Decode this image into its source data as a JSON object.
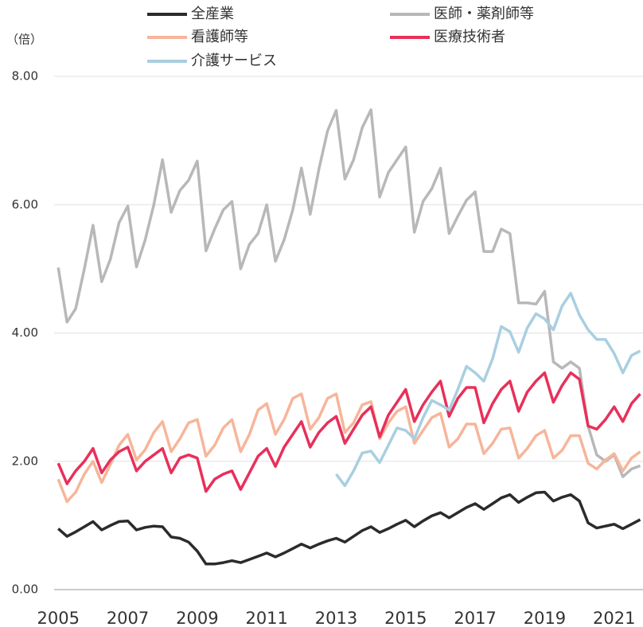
{
  "chart_data": {
    "type": "line",
    "y_unit_label": "（倍）",
    "x": [
      2005,
      2005.25,
      2005.5,
      2005.75,
      2006,
      2006.25,
      2006.5,
      2006.75,
      2007,
      2007.25,
      2007.5,
      2007.75,
      2008,
      2008.25,
      2008.5,
      2008.75,
      2009,
      2009.25,
      2009.5,
      2009.75,
      2010,
      2010.25,
      2010.5,
      2010.75,
      2011,
      2011.25,
      2011.5,
      2011.75,
      2012,
      2012.25,
      2012.5,
      2012.75,
      2013,
      2013.25,
      2013.5,
      2013.75,
      2014,
      2014.25,
      2014.5,
      2014.75,
      2015,
      2015.25,
      2015.5,
      2015.75,
      2016,
      2016.25,
      2016.5,
      2016.75,
      2017,
      2017.25,
      2017.5,
      2017.75,
      2018,
      2018.25,
      2018.5,
      2018.75,
      2019,
      2019.25,
      2019.5,
      2019.75,
      2020,
      2020.25,
      2020.5,
      2020.75,
      2021,
      2021.25,
      2021.5,
      2021.75
    ],
    "series": [
      {
        "name": "全産業",
        "color": "#2b2b2b",
        "values": [
          0.95,
          0.83,
          0.9,
          0.98,
          1.06,
          0.93,
          1.0,
          1.06,
          1.07,
          0.93,
          0.97,
          0.99,
          0.98,
          0.82,
          0.8,
          0.74,
          0.6,
          0.4,
          0.4,
          0.42,
          0.45,
          0.42,
          0.47,
          0.52,
          0.57,
          0.51,
          0.57,
          0.64,
          0.71,
          0.65,
          0.71,
          0.76,
          0.8,
          0.74,
          0.83,
          0.92,
          0.98,
          0.89,
          0.95,
          1.02,
          1.08,
          0.98,
          1.07,
          1.15,
          1.2,
          1.12,
          1.2,
          1.28,
          1.34,
          1.25,
          1.34,
          1.43,
          1.48,
          1.36,
          1.44,
          1.51,
          1.52,
          1.38,
          1.44,
          1.48,
          1.38,
          1.04,
          0.96,
          0.99,
          1.02,
          0.95,
          1.02,
          1.09
        ]
      },
      {
        "name": "医師・薬剤師等",
        "color": "#b8b8b8",
        "values": [
          5.02,
          4.17,
          4.38,
          5.0,
          5.68,
          4.8,
          5.15,
          5.72,
          5.98,
          5.03,
          5.45,
          6.0,
          6.7,
          5.88,
          6.22,
          6.38,
          6.68,
          5.28,
          5.62,
          5.92,
          6.05,
          5.0,
          5.38,
          5.55,
          6.0,
          5.12,
          5.45,
          5.92,
          6.57,
          5.85,
          6.55,
          7.15,
          7.47,
          6.4,
          6.7,
          7.2,
          7.48,
          6.12,
          6.5,
          6.7,
          6.9,
          5.57,
          6.05,
          6.25,
          6.57,
          5.55,
          5.82,
          6.07,
          6.2,
          5.27,
          5.27,
          5.62,
          5.55,
          4.47,
          4.47,
          4.45,
          4.65,
          3.55,
          3.45,
          3.55,
          3.45,
          2.55,
          2.1,
          2.0,
          2.1,
          1.76,
          1.88,
          1.93
        ]
      },
      {
        "name": "看護師等",
        "color": "#f7b59a",
        "values": [
          1.72,
          1.37,
          1.52,
          1.8,
          2.0,
          1.67,
          1.95,
          2.25,
          2.42,
          2.02,
          2.18,
          2.45,
          2.62,
          2.15,
          2.35,
          2.6,
          2.65,
          2.08,
          2.25,
          2.52,
          2.65,
          2.15,
          2.42,
          2.8,
          2.9,
          2.42,
          2.65,
          2.98,
          3.05,
          2.5,
          2.68,
          2.98,
          3.05,
          2.45,
          2.6,
          2.88,
          2.93,
          2.35,
          2.6,
          2.78,
          2.85,
          2.28,
          2.48,
          2.68,
          2.75,
          2.22,
          2.35,
          2.58,
          2.58,
          2.12,
          2.28,
          2.5,
          2.52,
          2.05,
          2.2,
          2.4,
          2.48,
          2.05,
          2.17,
          2.4,
          2.4,
          1.97,
          1.88,
          2.02,
          2.12,
          1.85,
          2.05,
          2.15
        ]
      },
      {
        "name": "医療技術者",
        "color": "#e8305a",
        "values": [
          1.97,
          1.65,
          1.85,
          2.0,
          2.2,
          1.82,
          2.02,
          2.15,
          2.22,
          1.85,
          2.0,
          2.1,
          2.2,
          1.82,
          2.05,
          2.1,
          2.05,
          1.53,
          1.72,
          1.8,
          1.85,
          1.56,
          1.82,
          2.08,
          2.2,
          1.92,
          2.22,
          2.42,
          2.62,
          2.22,
          2.45,
          2.6,
          2.7,
          2.28,
          2.5,
          2.72,
          2.85,
          2.38,
          2.72,
          2.92,
          3.12,
          2.62,
          2.88,
          3.08,
          3.25,
          2.7,
          2.98,
          3.15,
          3.15,
          2.6,
          2.9,
          3.12,
          3.25,
          2.78,
          3.08,
          3.25,
          3.38,
          2.92,
          3.18,
          3.38,
          3.28,
          2.55,
          2.5,
          2.65,
          2.85,
          2.62,
          2.9,
          3.05
        ]
      },
      {
        "name": "介護サービス",
        "color": "#a9cfe0",
        "values": [
          null,
          null,
          null,
          null,
          null,
          null,
          null,
          null,
          null,
          null,
          null,
          null,
          null,
          null,
          null,
          null,
          null,
          null,
          null,
          null,
          null,
          null,
          null,
          null,
          null,
          null,
          null,
          null,
          null,
          null,
          null,
          null,
          1.8,
          1.62,
          1.85,
          2.13,
          2.16,
          1.98,
          2.25,
          2.52,
          2.48,
          2.35,
          2.68,
          2.95,
          2.88,
          2.8,
          3.12,
          3.48,
          3.38,
          3.25,
          3.6,
          4.1,
          4.02,
          3.7,
          4.08,
          4.3,
          4.22,
          4.05,
          4.42,
          4.62,
          4.28,
          4.05,
          3.9,
          3.9,
          3.68,
          3.38,
          3.65,
          3.72
        ]
      }
    ],
    "xlim": [
      2004.88,
      2021.83
    ],
    "xticks": [
      2005,
      2007,
      2009,
      2011,
      2013,
      2015,
      2017,
      2019,
      2021
    ],
    "ylim": [
      0,
      8
    ],
    "yticks": [
      {
        "value": 0,
        "label": "0.00"
      },
      {
        "value": 2,
        "label": "2.00"
      },
      {
        "value": 4,
        "label": "4.00"
      },
      {
        "value": 6,
        "label": "6.00"
      },
      {
        "value": 8,
        "label": "8.00"
      }
    ],
    "grid": true
  }
}
